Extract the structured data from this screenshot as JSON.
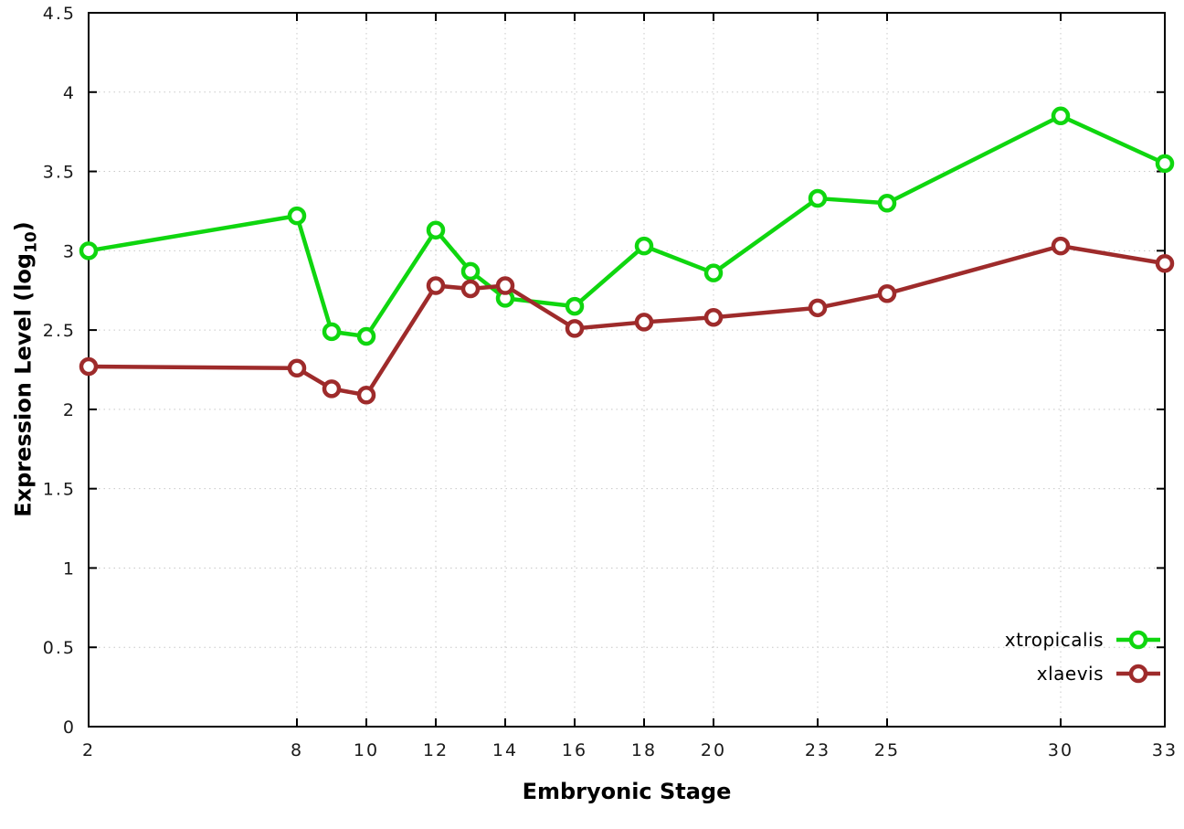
{
  "chart_data": {
    "type": "line",
    "title": "",
    "xlabel": "Embryonic Stage",
    "ylabel": "Expression Level (log10)",
    "ylabel_prefix": "Expression Level (log",
    "ylabel_sub": "10",
    "ylabel_suffix": ")",
    "x": [
      2,
      8,
      9,
      10,
      12,
      13,
      14,
      16,
      18,
      20,
      23,
      25,
      30,
      33
    ],
    "series": [
      {
        "name": "xtropicalis",
        "color": "#0fd60f",
        "values": [
          3.0,
          3.22,
          2.49,
          2.46,
          3.13,
          2.87,
          2.7,
          2.65,
          3.03,
          2.86,
          3.33,
          3.3,
          3.85,
          3.55
        ]
      },
      {
        "name": "xlaevis",
        "color": "#9e2b2b",
        "values": [
          2.27,
          2.26,
          2.13,
          2.09,
          2.78,
          2.76,
          2.78,
          2.51,
          2.55,
          2.58,
          2.64,
          2.73,
          3.03,
          2.92
        ]
      }
    ],
    "xlim": [
      2,
      33
    ],
    "ylim": [
      0,
      4.5
    ],
    "xticks": [
      2,
      8,
      10,
      12,
      14,
      16,
      18,
      20,
      23,
      25,
      30,
      33
    ],
    "xtick_labels": [
      "2",
      "8",
      "10",
      "12",
      "14",
      "16",
      "18",
      "20",
      "23",
      "25",
      "30",
      "33"
    ],
    "yticks": [
      0,
      0.5,
      1,
      1.5,
      2,
      2.5,
      3,
      3.5,
      4,
      4.5
    ],
    "ytick_labels": [
      "0",
      "0.5",
      "1",
      "1.5",
      "2",
      "2.5",
      "3",
      "3.5",
      "4",
      "4.5"
    ],
    "grid": true,
    "grid_color": "#c8c8c8",
    "border_color": "#000000",
    "background": "#ffffff",
    "legend_position": "bottom-right",
    "legend_entries": [
      "xtropicalis",
      "xlaevis"
    ]
  }
}
